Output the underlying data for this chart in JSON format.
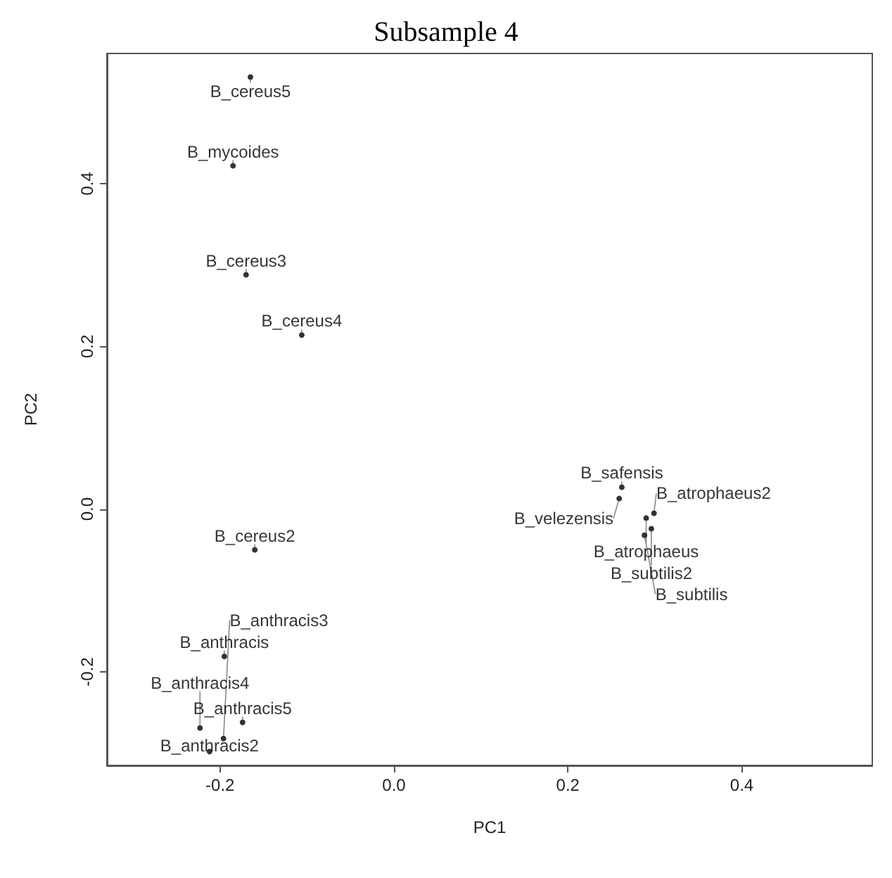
{
  "chart_data": {
    "type": "scatter",
    "title": "Subsample 4",
    "xlabel": "PC1",
    "ylabel": "PC2",
    "xlim": [
      -0.33,
      0.55
    ],
    "ylim": [
      -0.315,
      0.56
    ],
    "xticks": [
      -0.2,
      {
        "value": 0,
        "label": "0.0"
      },
      0.2,
      0.4
    ],
    "yticks": [
      -0.2,
      {
        "value": 0,
        "label": "0.0"
      },
      0.2,
      0.4
    ],
    "grid": false,
    "marker": "circle",
    "series": [
      {
        "name": "B_cereus5",
        "color": "#000000",
        "x": [
          -0.165
        ],
        "values": [
          0.531
        ]
      },
      {
        "name": "B_mycoides",
        "color": "#000000",
        "x": [
          -0.185
        ],
        "values": [
          0.422
        ]
      },
      {
        "name": "B_cereus3",
        "color": "#000000",
        "x": [
          -0.17
        ],
        "values": [
          0.288
        ]
      },
      {
        "name": "B_cereus4",
        "color": "#000000",
        "x": [
          -0.106
        ],
        "values": [
          0.214
        ]
      },
      {
        "name": "B_cereus2",
        "color": "#000000",
        "x": [
          -0.16
        ],
        "values": [
          -0.05
        ]
      },
      {
        "name": "B_anthracis",
        "color": "#000000",
        "x": [
          -0.195
        ],
        "values": [
          -0.181
        ]
      },
      {
        "name": "B_anthracis5",
        "color": "#000000",
        "x": [
          -0.174
        ],
        "values": [
          -0.262
        ]
      },
      {
        "name": "B_anthracis4",
        "color": "#000000",
        "x": [
          -0.223
        ],
        "values": [
          -0.269
        ]
      },
      {
        "name": "B_anthracis3",
        "color": "#000000",
        "x": [
          -0.196
        ],
        "values": [
          -0.282
        ]
      },
      {
        "name": "B_anthracis2",
        "color": "#000000",
        "x": [
          -0.212
        ],
        "values": [
          -0.298
        ]
      },
      {
        "name": "B_safensis",
        "color": "#000000",
        "x": [
          0.262
        ],
        "values": [
          0.027
        ]
      },
      {
        "name": "B_velezensis",
        "color": "#000000",
        "x": [
          0.259
        ],
        "values": [
          0.013
        ]
      },
      {
        "name": "B_atrophaeus2",
        "color": "#000000",
        "x": [
          0.299
        ],
        "values": [
          -0.005
        ]
      },
      {
        "name": "B_atrophaeus",
        "color": "#000000",
        "x": [
          0.29
        ],
        "values": [
          -0.011
        ]
      },
      {
        "name": "B_subtilis2",
        "color": "#000000",
        "x": [
          0.296
        ],
        "values": [
          -0.024
        ]
      },
      {
        "name": "B_subtilis",
        "color": "#000000",
        "x": [
          0.288
        ],
        "values": [
          -0.032
        ]
      }
    ]
  }
}
